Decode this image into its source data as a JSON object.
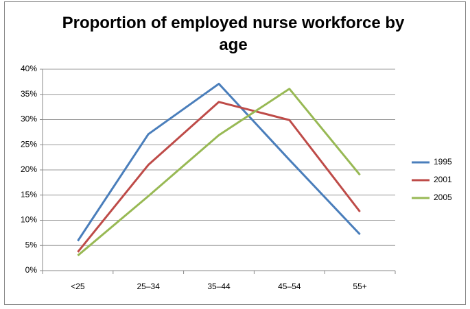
{
  "chart_data": {
    "type": "line",
    "title": "Proportion of employed nurse workforce by age",
    "categories": [
      "<25",
      "25–34",
      "35–44",
      "45–54",
      "55+"
    ],
    "series": [
      {
        "name": "1995",
        "color": "#4a7ebb",
        "values": [
          5.9,
          27.1,
          37.1,
          22.0,
          7.2
        ]
      },
      {
        "name": "2001",
        "color": "#be4b48",
        "values": [
          3.7,
          21.0,
          33.5,
          29.9,
          11.7
        ]
      },
      {
        "name": "2005",
        "color": "#98b954",
        "values": [
          3.0,
          14.8,
          26.9,
          36.1,
          19.0
        ]
      }
    ],
    "ylim": [
      0,
      40
    ],
    "yticks": [
      {
        "value": 0,
        "label": "0%"
      },
      {
        "value": 5,
        "label": "5%"
      },
      {
        "value": 10,
        "label": "10%"
      },
      {
        "value": 15,
        "label": "15%"
      },
      {
        "value": 20,
        "label": "20%"
      },
      {
        "value": 25,
        "label": "25%"
      },
      {
        "value": 30,
        "label": "30%"
      },
      {
        "value": 35,
        "label": "35%"
      },
      {
        "value": 40,
        "label": "40%"
      }
    ],
    "grid": true,
    "legend": "right"
  }
}
